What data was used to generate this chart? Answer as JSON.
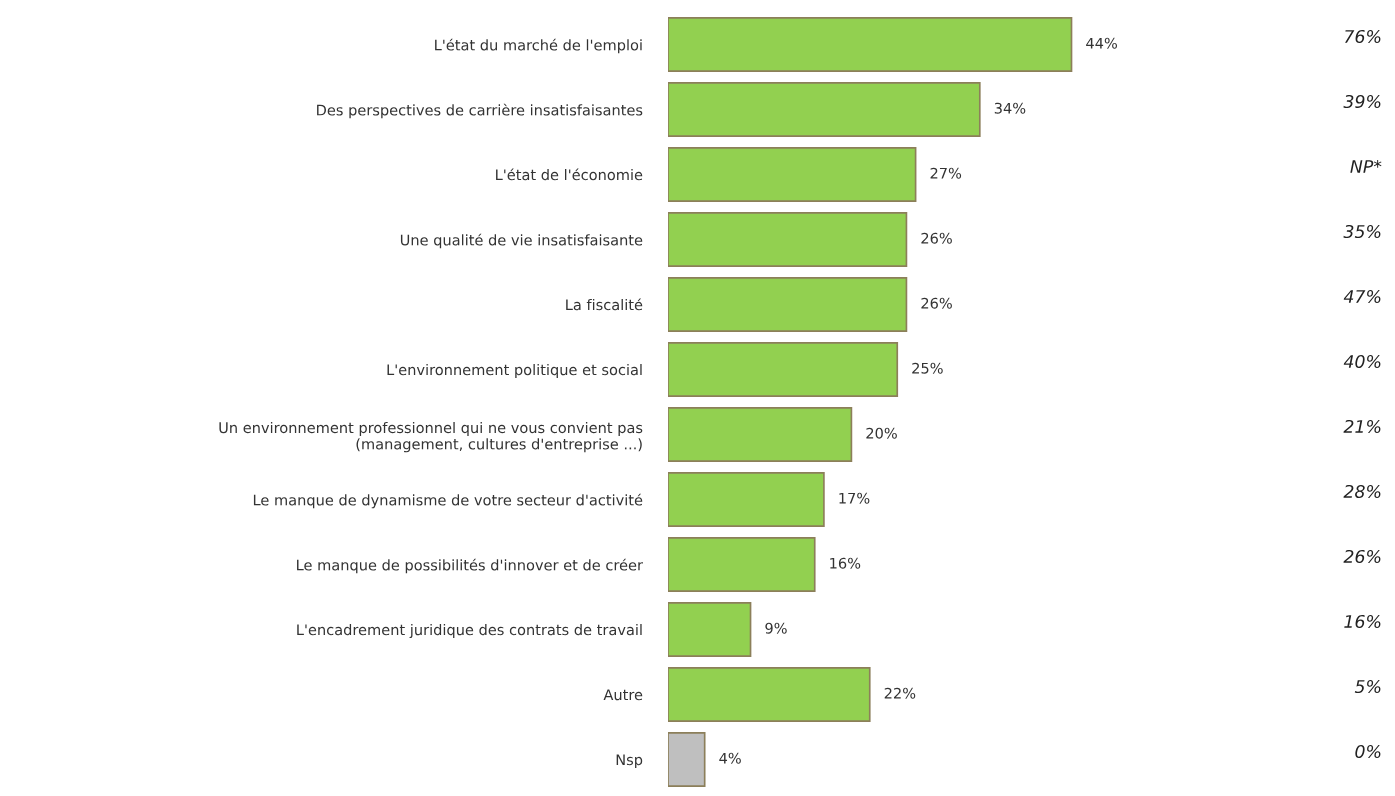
{
  "chart_data": {
    "type": "bar",
    "orientation": "horizontal",
    "categories": [
      "L'état du marché de l'emploi",
      "Des perspectives de carrière insatisfaisantes",
      "L'état de l'économie",
      "Une qualité de vie insatisfaisante",
      "La fiscalité",
      "L'environnement politique et social",
      "Un environnement professionnel qui ne vous convient pas\n(management, cultures d'entreprise ...)",
      "Le manque de dynamisme de votre secteur d'activité",
      "Le manque de possibilités d'innover et de créer",
      "L'encadrement juridique des contrats de travail",
      "Autre",
      "Nsp"
    ],
    "values": [
      44,
      34,
      27,
      26,
      26,
      25,
      20,
      17,
      16,
      9,
      22,
      4
    ],
    "colors": [
      "#92d050",
      "#92d050",
      "#92d050",
      "#92d050",
      "#92d050",
      "#92d050",
      "#92d050",
      "#92d050",
      "#92d050",
      "#92d050",
      "#92d050",
      "#bfbfbf"
    ],
    "value_labels": [
      "44%",
      "34%",
      "27%",
      "26%",
      "26%",
      "25%",
      "20%",
      "17%",
      "16%",
      "9%",
      "22%",
      "4%"
    ],
    "annotations": [
      "76%",
      "39%",
      "NP*",
      "35%",
      "47%",
      "40%",
      "21%",
      "28%",
      "26%",
      "16%",
      "5%",
      "0%"
    ],
    "grid": false,
    "legend": false
  }
}
